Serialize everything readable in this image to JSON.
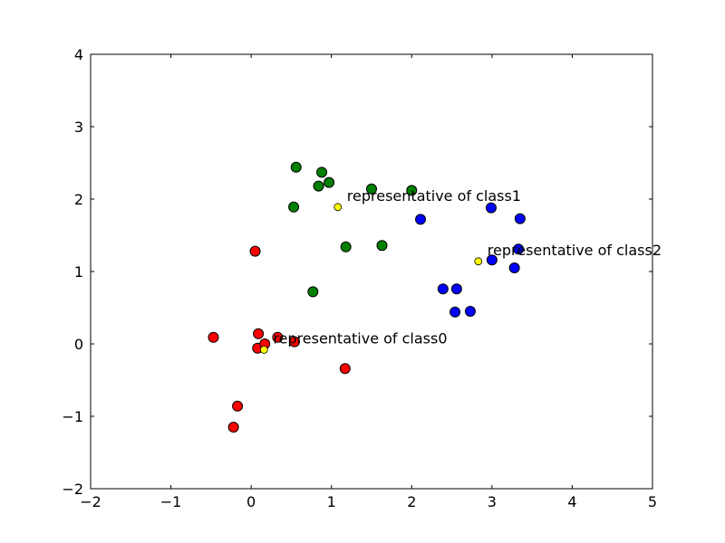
{
  "chart_data": {
    "type": "scatter",
    "xlim": [
      -2,
      5
    ],
    "ylim": [
      -2,
      4
    ],
    "xticks": [
      "−2",
      "−1",
      "0",
      "1",
      "2",
      "3",
      "4",
      "5"
    ],
    "yticks": [
      "−2",
      "−1",
      "0",
      "1",
      "2",
      "3",
      "4"
    ],
    "grid": false,
    "series": [
      {
        "color": "#ff0000",
        "points": [
          {
            "x": -0.47,
            "y": 0.09
          },
          {
            "x": 0.05,
            "y": 1.28
          },
          {
            "x": 0.09,
            "y": 0.14
          },
          {
            "x": 0.08,
            "y": -0.06
          },
          {
            "x": 0.17,
            "y": 0.0
          },
          {
            "x": 0.33,
            "y": 0.09
          },
          {
            "x": 0.54,
            "y": 0.03
          },
          {
            "x": 1.17,
            "y": -0.34
          },
          {
            "x": -0.17,
            "y": -0.86
          },
          {
            "x": -0.22,
            "y": -1.15
          }
        ]
      },
      {
        "color": "#008000",
        "points": [
          {
            "x": 0.56,
            "y": 2.44
          },
          {
            "x": 0.88,
            "y": 2.37
          },
          {
            "x": 0.84,
            "y": 2.18
          },
          {
            "x": 0.97,
            "y": 2.23
          },
          {
            "x": 0.53,
            "y": 1.89
          },
          {
            "x": 1.5,
            "y": 2.14
          },
          {
            "x": 2.0,
            "y": 2.12
          },
          {
            "x": 1.18,
            "y": 1.34
          },
          {
            "x": 1.63,
            "y": 1.36
          },
          {
            "x": 0.77,
            "y": 0.72
          }
        ]
      },
      {
        "color": "#0000ff",
        "points": [
          {
            "x": 2.11,
            "y": 1.72
          },
          {
            "x": 2.99,
            "y": 1.88
          },
          {
            "x": 3.35,
            "y": 1.73
          },
          {
            "x": 3.33,
            "y": 1.31
          },
          {
            "x": 3.0,
            "y": 1.16
          },
          {
            "x": 3.28,
            "y": 1.05
          },
          {
            "x": 2.39,
            "y": 0.76
          },
          {
            "x": 2.56,
            "y": 0.76
          },
          {
            "x": 2.54,
            "y": 0.44
          },
          {
            "x": 2.73,
            "y": 0.45
          }
        ]
      }
    ],
    "representatives": [
      {
        "x": 0.16,
        "y": -0.08,
        "color": "#ffff00",
        "label": "representative of class0"
      },
      {
        "x": 1.08,
        "y": 1.89,
        "color": "#ffff00",
        "label": "representative of class1"
      },
      {
        "x": 2.83,
        "y": 1.14,
        "color": "#ffff00",
        "label": "representative of class2"
      }
    ]
  }
}
